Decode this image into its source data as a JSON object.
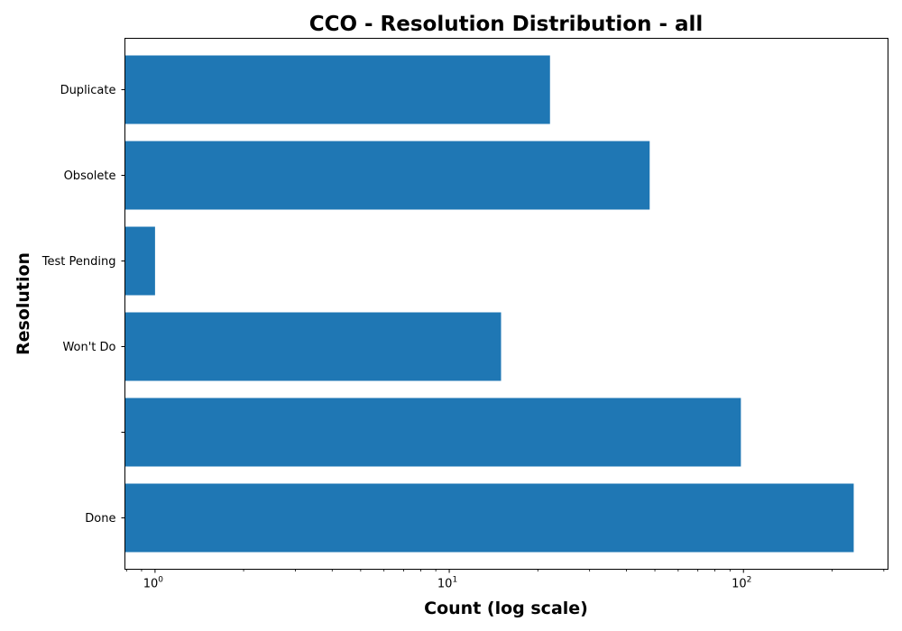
{
  "chart_data": {
    "type": "bar",
    "orientation": "horizontal",
    "title": "CCO - Resolution Distribution - all",
    "xlabel": "Count (log scale)",
    "ylabel": "Resolution",
    "x_scale": "log",
    "xlim": [
      0.79,
      310
    ],
    "categories": [
      "Done",
      "",
      "Won't Do",
      "Test Pending",
      "Obsolete",
      "Duplicate"
    ],
    "values": [
      237,
      98,
      15,
      1,
      48,
      22
    ],
    "x_ticks": [
      {
        "base": "10",
        "exp": "0",
        "value": 1
      },
      {
        "base": "10",
        "exp": "1",
        "value": 10
      },
      {
        "base": "10",
        "exp": "2",
        "value": 100
      }
    ],
    "bar_color": "#1f77b4",
    "grid": false,
    "legend": "none"
  }
}
